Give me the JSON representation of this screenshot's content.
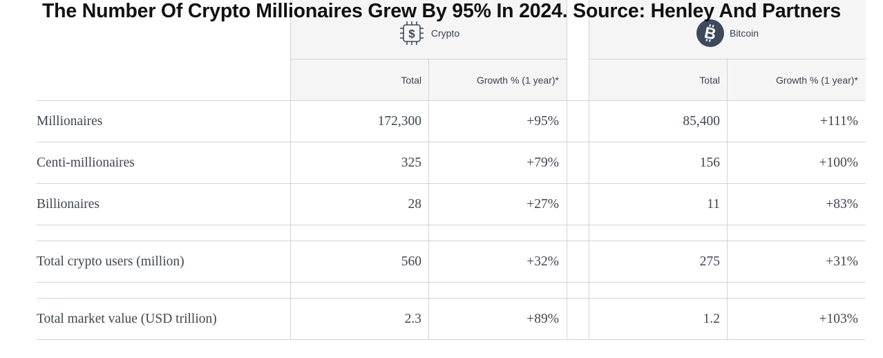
{
  "title": "The Number Of Crypto Millionaires Grew By 95% In 2024. Source: Henley And Partners",
  "colors": {
    "header_bg": "#f5f5f5",
    "grid": "#d3d3d3",
    "text": "#3f4650",
    "bitcoin_badge": "#3d4a5c"
  },
  "groups": [
    {
      "label": "Crypto",
      "icon": "crypto-chip-icon"
    },
    {
      "label": "Bitcoin",
      "icon": "bitcoin-icon"
    }
  ],
  "subheaders": {
    "total": "Total",
    "growth": "Growth % (1 year)*"
  },
  "rows": [
    {
      "label": "Millionaires",
      "crypto_total": "172,300",
      "crypto_growth": "+95%",
      "bitcoin_total": "85,400",
      "bitcoin_growth": "+111%"
    },
    {
      "label": "Centi-millionaires",
      "crypto_total": "325",
      "crypto_growth": "+79%",
      "bitcoin_total": "156",
      "bitcoin_growth": "+100%"
    },
    {
      "label": "Billionaires",
      "crypto_total": "28",
      "crypto_growth": "+27%",
      "bitcoin_total": "11",
      "bitcoin_growth": "+83%"
    },
    {
      "label": "Total crypto users (million)",
      "crypto_total": "560",
      "crypto_growth": "+32%",
      "bitcoin_total": "275",
      "bitcoin_growth": "+31%"
    },
    {
      "label": "Total market value (USD trillion)",
      "crypto_total": "2.3",
      "crypto_growth": "+89%",
      "bitcoin_total": "1.2",
      "bitcoin_growth": "+103%"
    }
  ],
  "chart_data": {
    "type": "table",
    "title": "The Number Of Crypto Millionaires Grew By 95% In 2024. Source: Henley And Partners",
    "column_groups": [
      "Crypto",
      "Bitcoin"
    ],
    "columns": [
      "Total",
      "Growth % (1 year)*"
    ],
    "rows": [
      {
        "label": "Millionaires",
        "crypto": {
          "total": 172300,
          "growth_pct": 95
        },
        "bitcoin": {
          "total": 85400,
          "growth_pct": 111
        }
      },
      {
        "label": "Centi-millionaires",
        "crypto": {
          "total": 325,
          "growth_pct": 79
        },
        "bitcoin": {
          "total": 156,
          "growth_pct": 100
        }
      },
      {
        "label": "Billionaires",
        "crypto": {
          "total": 28,
          "growth_pct": 27
        },
        "bitcoin": {
          "total": 11,
          "growth_pct": 83
        }
      },
      {
        "label": "Total crypto users (million)",
        "crypto": {
          "total": 560,
          "growth_pct": 32
        },
        "bitcoin": {
          "total": 275,
          "growth_pct": 31
        }
      },
      {
        "label": "Total market value (USD trillion)",
        "crypto": {
          "total": 2.3,
          "growth_pct": 89
        },
        "bitcoin": {
          "total": 1.2,
          "growth_pct": 103
        }
      }
    ]
  }
}
